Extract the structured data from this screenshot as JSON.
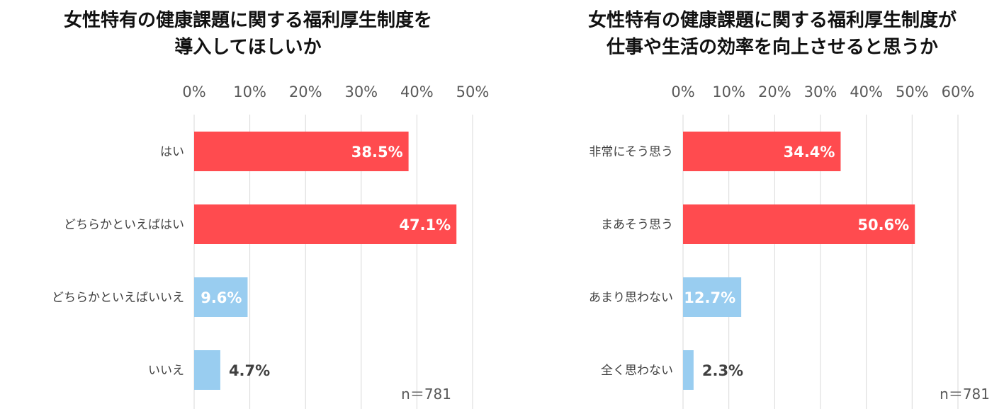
{
  "colors": {
    "positive": "#ff4b4f",
    "negative": "#99cdf0",
    "grid": "#d9d9d9",
    "inside_label": "#ffffff",
    "outside_label": "#404040"
  },
  "chart_data": [
    {
      "type": "bar",
      "orientation": "horizontal",
      "title": [
        "女性特有の健康課題に関する福利厚生制度を",
        "導入してほしいか"
      ],
      "categories": [
        "はい",
        "どちらかといえばはい",
        "どちらかといえばいいえ",
        "いいえ"
      ],
      "values": [
        38.5,
        47.1,
        9.6,
        4.7
      ],
      "data_labels": [
        "38.5%",
        "47.1%",
        "9.6%",
        "4.7%"
      ],
      "bar_colors": [
        "positive",
        "positive",
        "negative",
        "negative"
      ],
      "xlim": [
        0,
        50
      ],
      "xticks": [
        "0%",
        "10%",
        "20%",
        "30%",
        "40%",
        "50%"
      ],
      "axis_position": "top",
      "grid": true,
      "note": "n＝781"
    },
    {
      "type": "bar",
      "orientation": "horizontal",
      "title": [
        "女性特有の健康課題に関する福利厚生制度が",
        "仕事や生活の効率を向上させると思うか"
      ],
      "categories": [
        "非常にそう思う",
        "まあそう思う",
        "あまり思わない",
        "全く思わない"
      ],
      "values": [
        34.4,
        50.6,
        12.7,
        2.3
      ],
      "data_labels": [
        "34.4%",
        "50.6%",
        "12.7%",
        "2.3%"
      ],
      "bar_colors": [
        "positive",
        "positive",
        "negative",
        "negative"
      ],
      "xlim": [
        0,
        60
      ],
      "xticks": [
        "0%",
        "10%",
        "20%",
        "30%",
        "40%",
        "50%",
        "60%"
      ],
      "axis_position": "top",
      "grid": true,
      "note": "n＝781"
    }
  ]
}
